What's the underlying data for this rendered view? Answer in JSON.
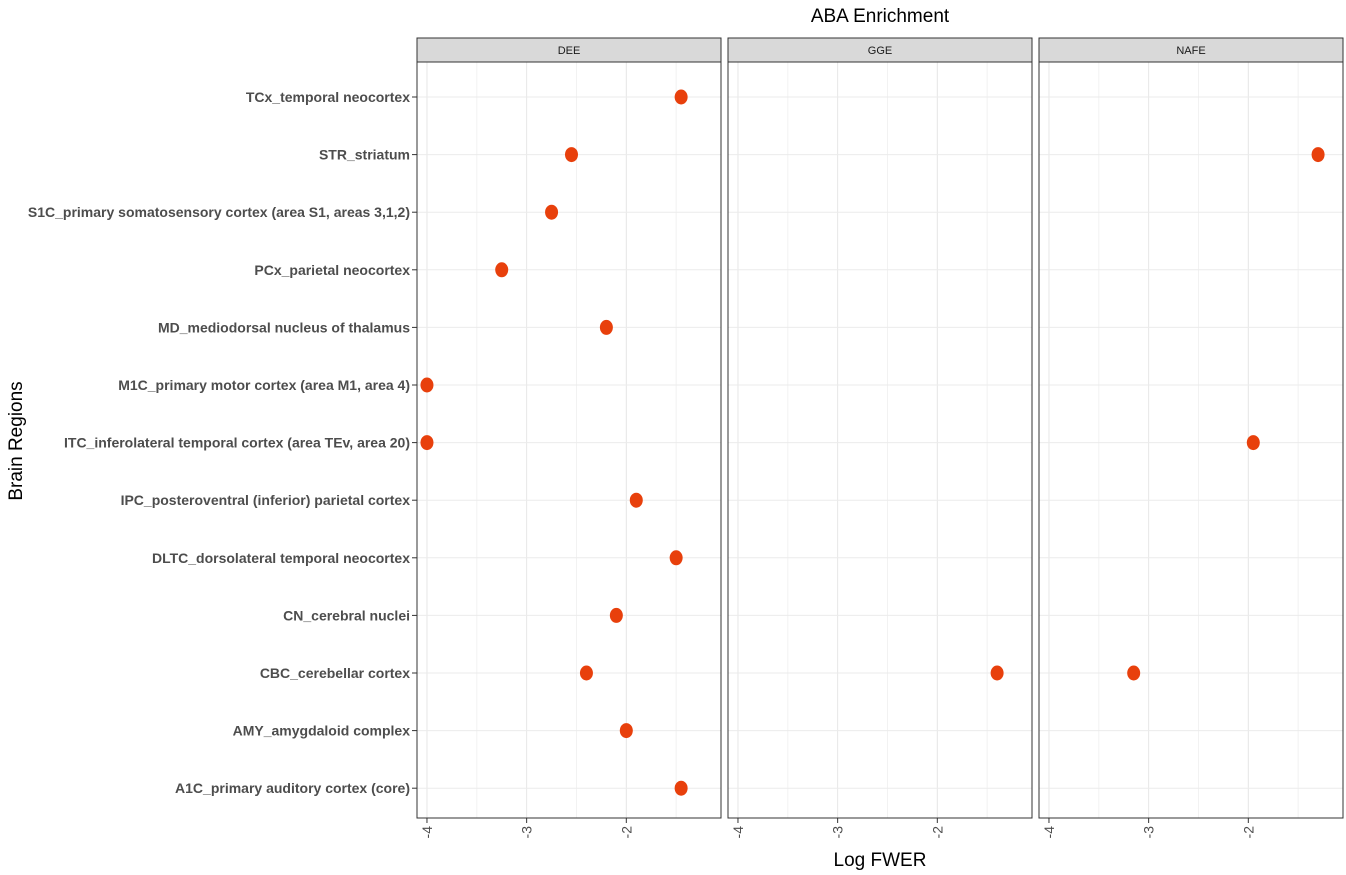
{
  "chart_data": {
    "type": "scatter",
    "title": "ABA Enrichment",
    "xlabel": "Log FWER",
    "ylabel": "Brain Regions",
    "xlim": [
      -4.1,
      -1.05
    ],
    "xticks": [
      -4,
      -3,
      -2
    ],
    "xtick_labels": [
      "-4",
      "-3",
      "-2"
    ],
    "grid": true,
    "marker_color": "#e8400c",
    "facet_strip_color": "#d9d9d9",
    "categories": [
      "TCx_temporal neocortex",
      "STR_striatum",
      "S1C_primary somatosensory cortex (area S1, areas 3,1,2)",
      "PCx_parietal neocortex",
      "MD_mediodorsal nucleus of thalamus",
      "M1C_primary motor cortex (area M1, area 4)",
      "ITC_inferolateral temporal cortex (area TEv, area 20)",
      "IPC_posteroventral (inferior) parietal cortex",
      "DLTC_dorsolateral temporal neocortex",
      "CN_cerebral nuclei",
      "CBC_cerebellar cortex",
      "AMY_amygdaloid complex",
      "A1C_primary auditory cortex (core)"
    ],
    "facets": [
      {
        "name": "DEE",
        "points": [
          {
            "y": "TCx_temporal neocortex",
            "x": -1.45
          },
          {
            "y": "STR_striatum",
            "x": -2.55
          },
          {
            "y": "S1C_primary somatosensory cortex (area S1, areas 3,1,2)",
            "x": -2.75
          },
          {
            "y": "PCx_parietal neocortex",
            "x": -3.25
          },
          {
            "y": "MD_mediodorsal nucleus of thalamus",
            "x": -2.2
          },
          {
            "y": "M1C_primary motor cortex (area M1, area 4)",
            "x": -4.0
          },
          {
            "y": "ITC_inferolateral temporal cortex (area TEv, area 20)",
            "x": -4.0
          },
          {
            "y": "IPC_posteroventral (inferior) parietal cortex",
            "x": -1.9
          },
          {
            "y": "DLTC_dorsolateral temporal neocortex",
            "x": -1.5
          },
          {
            "y": "CN_cerebral nuclei",
            "x": -2.1
          },
          {
            "y": "CBC_cerebellar cortex",
            "x": -2.4
          },
          {
            "y": "AMY_amygdaloid complex",
            "x": -2.0
          },
          {
            "y": "A1C_primary auditory cortex (core)",
            "x": -1.45
          }
        ]
      },
      {
        "name": "GGE",
        "points": [
          {
            "y": "CBC_cerebellar cortex",
            "x": -1.4
          }
        ]
      },
      {
        "name": "NAFE",
        "points": [
          {
            "y": "STR_striatum",
            "x": -1.3
          },
          {
            "y": "ITC_inferolateral temporal cortex (area TEv, area 20)",
            "x": -1.95
          },
          {
            "y": "CBC_cerebellar cortex",
            "x": -3.15
          }
        ]
      }
    ]
  }
}
